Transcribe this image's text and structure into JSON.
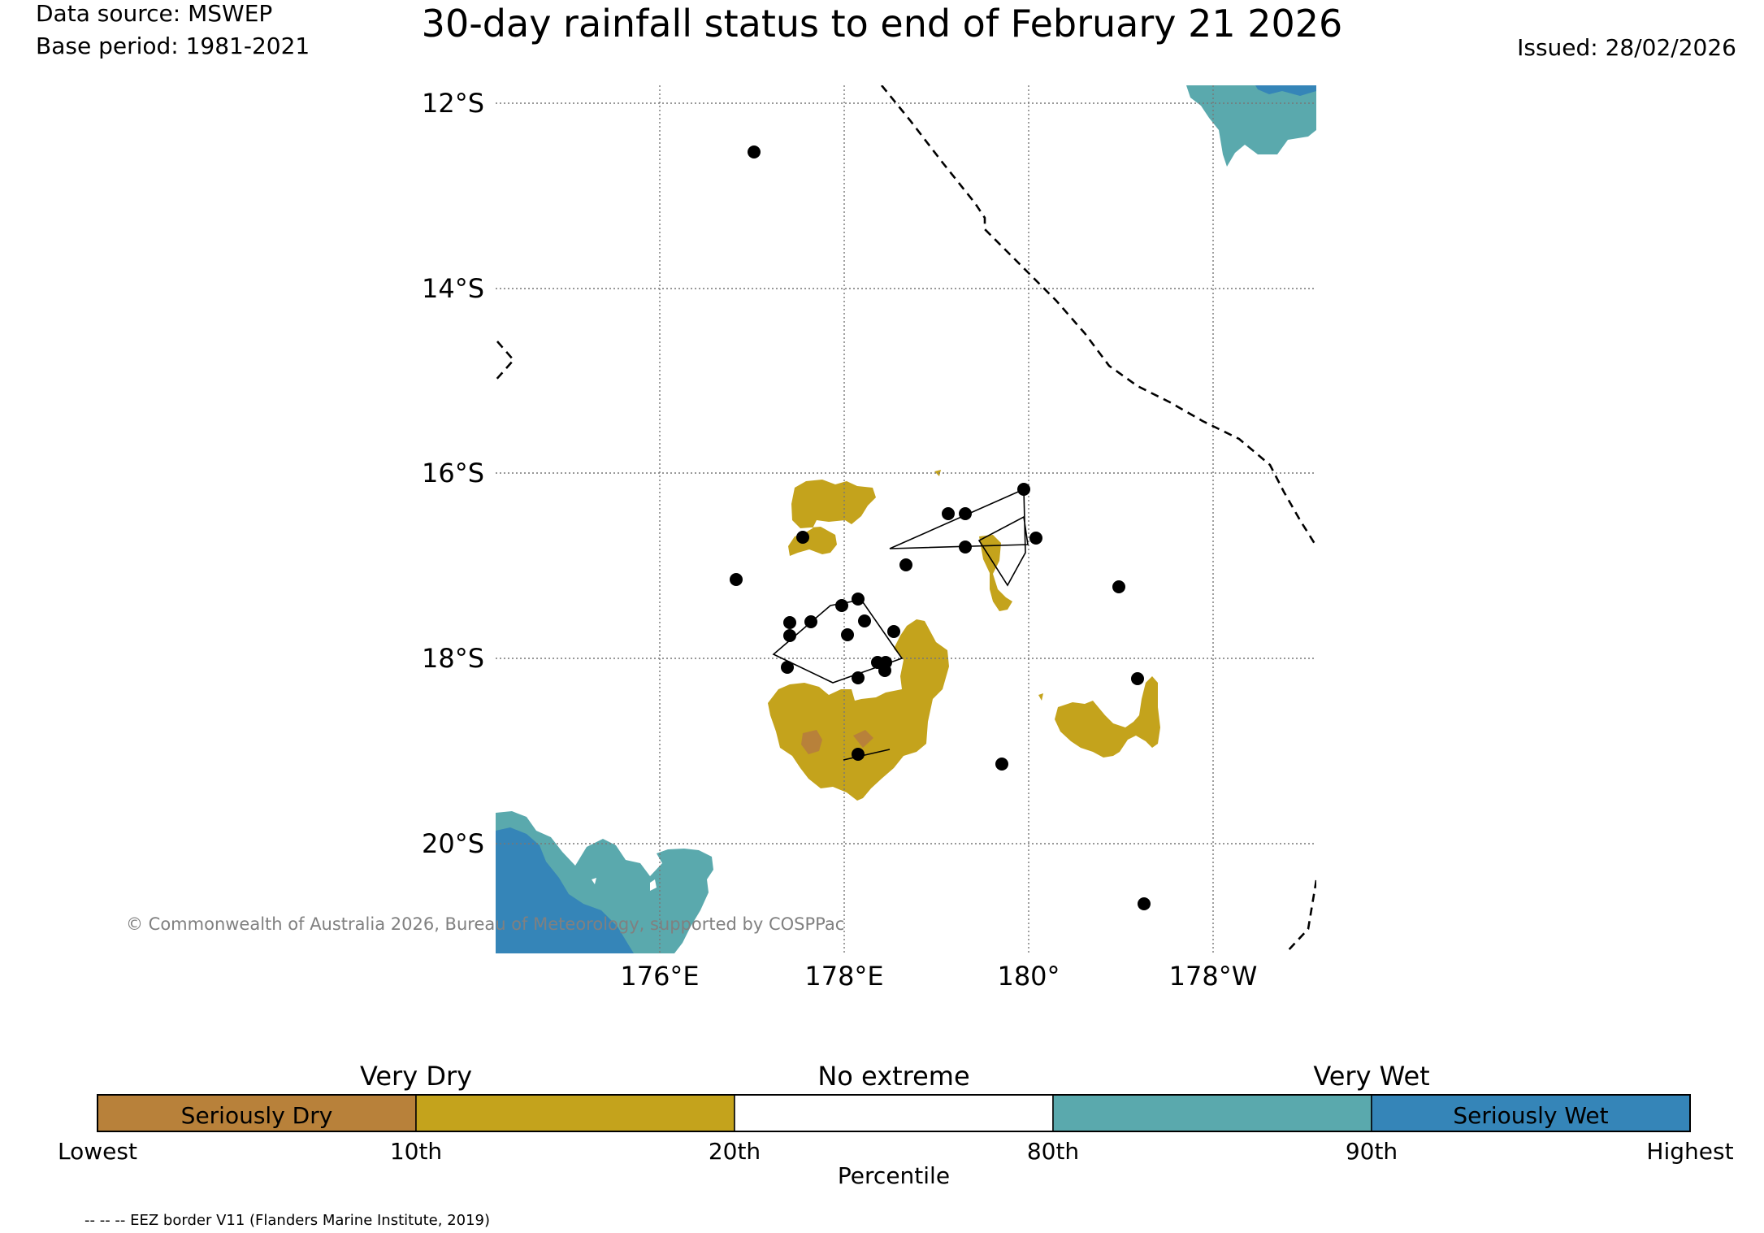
{
  "header": {
    "data_source": "Data source: MSWEP",
    "base_period": "Base period: 1981-2021",
    "title": "30-day rainfall status to end of February 21 2026",
    "issued": "Issued: 28/02/2026"
  },
  "map": {
    "lat_labels": [
      "12°S",
      "14°S",
      "16°S",
      "18°S",
      "20°S"
    ],
    "lon_labels": [
      "176°E",
      "178°E",
      "180°",
      "178°W"
    ],
    "copyright": "© Commonwealth of Australia 2026, Bureau of Meteorology, supported by COSPPac"
  },
  "legend": {
    "group_labels": [
      "Very Dry",
      "No extreme",
      "Very Wet"
    ],
    "segments": [
      {
        "label": "Seriously Dry",
        "color": "#b8813a"
      },
      {
        "label": "",
        "color": "#c4a31c"
      },
      {
        "label": "",
        "color": "#ffffff"
      },
      {
        "label": "",
        "color": "#5aa9ad"
      },
      {
        "label": "Seriously Wet",
        "color": "#3585b8"
      }
    ],
    "ticks": [
      "Lowest",
      "10th",
      "20th",
      "80th",
      "90th",
      "Highest"
    ],
    "axis_title": "Percentile"
  },
  "footer": {
    "eez_note": "-- -- -- EEZ border V11 (Flanders Marine Institute, 2019)"
  }
}
